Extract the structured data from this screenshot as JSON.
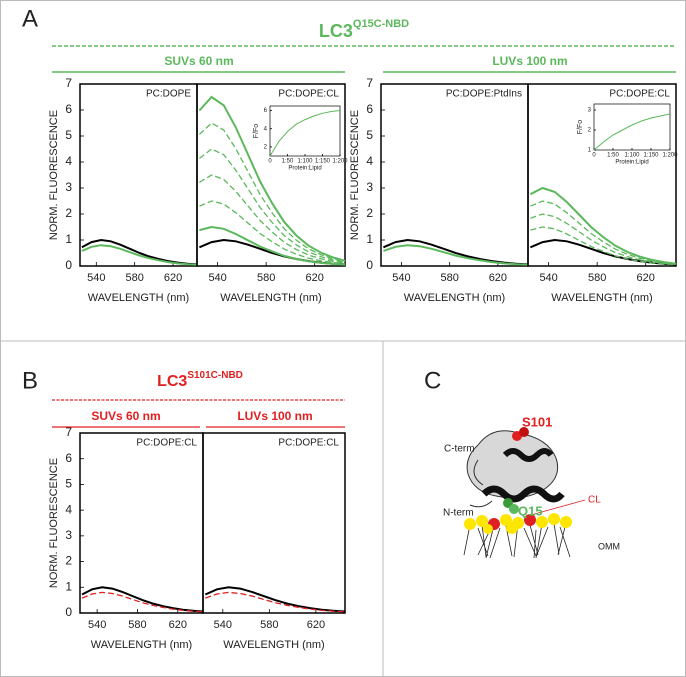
{
  "panels": {
    "A": {
      "letter": "A",
      "title": "LC3",
      "title_superscript": "Q15C-NBD",
      "subtitles": [
        "SUVs 60 nm",
        "LUVs 100 nm"
      ]
    },
    "B": {
      "letter": "B",
      "title": "LC3",
      "title_superscript": "S101C-NBD",
      "subtitles": [
        "SUVs 60 nm",
        "LUVs 100 nm"
      ]
    },
    "C": {
      "letter": "C",
      "labels": [
        "S101",
        "C-term",
        "N-term",
        "Q15",
        "CL",
        "OMM"
      ]
    }
  },
  "chart_data": [
    {
      "type": "line",
      "label": "PC:DOPE",
      "xlabel": "WAVELENGTH (nm)",
      "ylabel": "NORM. FLUORESCENCE",
      "x": [
        525,
        535,
        545,
        555,
        565,
        575,
        585,
        595,
        605,
        615,
        625,
        635,
        645
      ],
      "xlim": [
        523,
        645
      ],
      "xticks": [
        540,
        580,
        620
      ],
      "ylim": [
        0,
        7
      ],
      "yticks": [
        0,
        1,
        2,
        3,
        4,
        5,
        6,
        7
      ],
      "series": [
        {
          "color": "#000000",
          "values": [
            0.72,
            0.92,
            1.0,
            0.95,
            0.82,
            0.66,
            0.5,
            0.37,
            0.27,
            0.19,
            0.13,
            0.09,
            0.06
          ]
        },
        {
          "color": "#5cb85c",
          "values": [
            0.58,
            0.74,
            0.8,
            0.76,
            0.66,
            0.53,
            0.4,
            0.3,
            0.22,
            0.15,
            0.1,
            0.07,
            0.05
          ]
        }
      ]
    },
    {
      "type": "line",
      "label": "PC:DOPE:CL",
      "xlabel": "WAVELENGTH (nm)",
      "x": [
        525,
        535,
        545,
        555,
        565,
        575,
        585,
        595,
        605,
        615,
        625,
        635,
        645
      ],
      "xlim": [
        523,
        645
      ],
      "xticks": [
        540,
        580,
        620
      ],
      "ylim": [
        0,
        7
      ],
      "series": [
        {
          "color": "#000000",
          "values": [
            0.72,
            0.92,
            1.0,
            0.95,
            0.82,
            0.66,
            0.5,
            0.37,
            0.27,
            0.19,
            0.13,
            0.09,
            0.06
          ]
        },
        {
          "color": "#5cb85c",
          "values": [
            5.98,
            6.5,
            6.18,
            5.33,
            4.29,
            3.25,
            2.41,
            1.69,
            1.17,
            0.78,
            0.52,
            0.33,
            0.2
          ]
        },
        {
          "color": "#5cb85c",
          "dashed": true,
          "values": [
            5.06,
            5.5,
            5.23,
            4.51,
            3.63,
            2.75,
            2.04,
            1.43,
            0.99,
            0.66,
            0.44,
            0.28,
            0.17
          ]
        },
        {
          "color": "#5cb85c",
          "dashed": true,
          "values": [
            4.14,
            4.5,
            4.28,
            3.69,
            2.97,
            2.25,
            1.67,
            1.17,
            0.81,
            0.54,
            0.36,
            0.23,
            0.14
          ]
        },
        {
          "color": "#5cb85c",
          "dashed": true,
          "values": [
            3.22,
            3.5,
            3.33,
            2.87,
            2.31,
            1.75,
            1.3,
            0.91,
            0.63,
            0.42,
            0.28,
            0.18,
            0.11
          ]
        },
        {
          "color": "#5cb85c",
          "dashed": true,
          "values": [
            2.3,
            2.5,
            2.38,
            2.05,
            1.65,
            1.25,
            0.93,
            0.65,
            0.45,
            0.3,
            0.2,
            0.13,
            0.08
          ]
        },
        {
          "color": "#5cb85c",
          "values": [
            1.38,
            1.5,
            1.43,
            1.23,
            0.99,
            0.75,
            0.56,
            0.39,
            0.27,
            0.18,
            0.12,
            0.08,
            0.05
          ]
        }
      ],
      "inset": {
        "type": "line",
        "xlabel": "Protein:Lipid",
        "ylabel": "F/Fo",
        "x": [
          0,
          25,
          50,
          75,
          100,
          125,
          150,
          175,
          200
        ],
        "xlim": [
          0,
          200
        ],
        "xticks": [
          0,
          {
            "value": 50,
            "label": "1:50"
          },
          {
            "value": 100,
            "label": "1:100"
          },
          {
            "value": 150,
            "label": "1:150"
          },
          {
            "value": 200,
            "label": "1:200"
          }
        ],
        "ylim": [
          1,
          6.5
        ],
        "yticks": [
          2,
          4,
          6
        ],
        "series": [
          {
            "color": "#5cb85c",
            "values": [
              1,
              2.6,
              3.7,
              4.5,
              5.0,
              5.4,
              5.7,
              5.9,
              6.0
            ]
          }
        ]
      }
    },
    {
      "type": "line",
      "label": "PC:DOPE:PtdIns",
      "xlabel": "WAVELENGTH (nm)",
      "ylabel": "NORM. FLUORESCENCE",
      "x": [
        525,
        535,
        545,
        555,
        565,
        575,
        585,
        595,
        605,
        615,
        625,
        635,
        645
      ],
      "xlim": [
        523,
        645
      ],
      "xticks": [
        540,
        580,
        620
      ],
      "ylim": [
        0,
        7
      ],
      "yticks": [
        0,
        1,
        2,
        3,
        4,
        5,
        6,
        7
      ],
      "series": [
        {
          "color": "#000000",
          "values": [
            0.72,
            0.92,
            1.0,
            0.95,
            0.82,
            0.66,
            0.5,
            0.37,
            0.27,
            0.19,
            0.13,
            0.09,
            0.06
          ]
        },
        {
          "color": "#5cb85c",
          "values": [
            0.58,
            0.74,
            0.8,
            0.76,
            0.66,
            0.53,
            0.4,
            0.3,
            0.22,
            0.15,
            0.1,
            0.07,
            0.05
          ]
        }
      ]
    },
    {
      "type": "line",
      "label": "PC:DOPE:CL",
      "xlabel": "WAVELENGTH (nm)",
      "x": [
        525,
        535,
        545,
        555,
        565,
        575,
        585,
        595,
        605,
        615,
        625,
        635,
        645
      ],
      "xlim": [
        523,
        645
      ],
      "xticks": [
        540,
        580,
        620
      ],
      "ylim": [
        0,
        7
      ],
      "series": [
        {
          "color": "#000000",
          "values": [
            0.72,
            0.92,
            1.0,
            0.95,
            0.82,
            0.66,
            0.5,
            0.37,
            0.27,
            0.19,
            0.13,
            0.09,
            0.06
          ]
        },
        {
          "color": "#5cb85c",
          "values": [
            2.76,
            3.0,
            2.85,
            2.46,
            1.98,
            1.5,
            1.11,
            0.78,
            0.54,
            0.36,
            0.24,
            0.15,
            0.09
          ]
        },
        {
          "color": "#5cb85c",
          "dashed": true,
          "values": [
            2.3,
            2.5,
            2.38,
            2.05,
            1.65,
            1.25,
            0.93,
            0.65,
            0.45,
            0.3,
            0.2,
            0.13,
            0.08
          ]
        },
        {
          "color": "#5cb85c",
          "dashed": true,
          "values": [
            1.84,
            2.0,
            1.9,
            1.64,
            1.32,
            1.0,
            0.74,
            0.52,
            0.36,
            0.24,
            0.16,
            0.1,
            0.06
          ]
        },
        {
          "color": "#5cb85c",
          "dashed": true,
          "values": [
            1.38,
            1.5,
            1.43,
            1.23,
            0.99,
            0.75,
            0.56,
            0.39,
            0.27,
            0.18,
            0.12,
            0.08,
            0.05
          ]
        }
      ],
      "inset": {
        "type": "line",
        "xlabel": "Protein:Lipid",
        "ylabel": "F/Fo",
        "x": [
          0,
          25,
          50,
          75,
          100,
          125,
          150,
          175,
          200
        ],
        "xlim": [
          0,
          200
        ],
        "xticks": [
          0,
          {
            "value": 50,
            "label": "1:50"
          },
          {
            "value": 100,
            "label": "1:100"
          },
          {
            "value": 150,
            "label": "1:150"
          },
          {
            "value": 200,
            "label": "1:200"
          }
        ],
        "ylim": [
          1,
          3.3
        ],
        "yticks": [
          1,
          2,
          3
        ],
        "series": [
          {
            "color": "#5cb85c",
            "values": [
              1,
              1.4,
              1.75,
              2.0,
              2.25,
              2.45,
              2.6,
              2.7,
              2.8
            ]
          }
        ]
      }
    },
    {
      "type": "line",
      "label": "PC:DOPE:CL",
      "xlabel": "WAVELENGTH (nm)",
      "ylabel": "NORM. FLUORESCENCE",
      "x": [
        525,
        535,
        545,
        555,
        565,
        575,
        585,
        595,
        605,
        615,
        625,
        635,
        645
      ],
      "xlim": [
        523,
        645
      ],
      "xticks": [
        540,
        580,
        620
      ],
      "ylim": [
        0,
        7
      ],
      "yticks": [
        0,
        1,
        2,
        3,
        4,
        5,
        6,
        7
      ],
      "series": [
        {
          "color": "#000000",
          "values": [
            0.72,
            0.92,
            1.0,
            0.95,
            0.82,
            0.66,
            0.5,
            0.37,
            0.27,
            0.19,
            0.13,
            0.09,
            0.06
          ]
        },
        {
          "color": "#e02020",
          "dashed": true,
          "values": [
            0.58,
            0.74,
            0.8,
            0.76,
            0.66,
            0.53,
            0.4,
            0.3,
            0.22,
            0.15,
            0.1,
            0.07,
            0.05
          ]
        }
      ]
    },
    {
      "type": "line",
      "label": "PC:DOPE:CL",
      "xlabel": "WAVELENGTH (nm)",
      "x": [
        525,
        535,
        545,
        555,
        565,
        575,
        585,
        595,
        605,
        615,
        625,
        635,
        645
      ],
      "xlim": [
        523,
        645
      ],
      "xticks": [
        540,
        580,
        620
      ],
      "ylim": [
        0,
        7
      ],
      "series": [
        {
          "color": "#000000",
          "values": [
            0.72,
            0.92,
            1.0,
            0.95,
            0.82,
            0.66,
            0.5,
            0.37,
            0.27,
            0.19,
            0.13,
            0.09,
            0.06
          ]
        },
        {
          "color": "#e02020",
          "dashed": true,
          "values": [
            0.58,
            0.74,
            0.8,
            0.76,
            0.66,
            0.53,
            0.4,
            0.3,
            0.22,
            0.15,
            0.1,
            0.07,
            0.05
          ]
        }
      ]
    }
  ]
}
